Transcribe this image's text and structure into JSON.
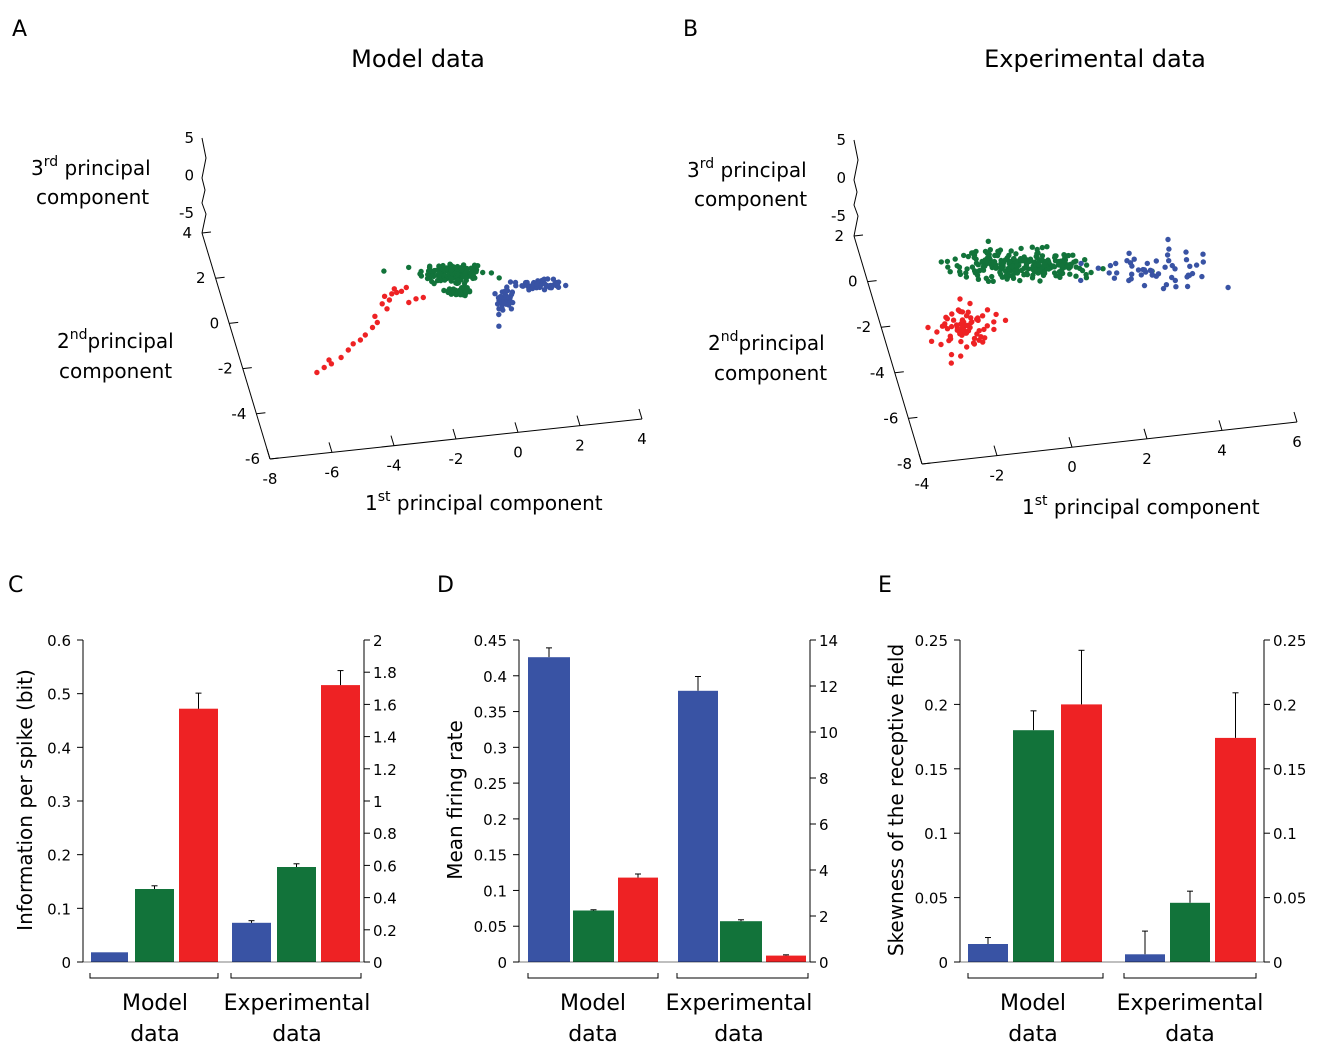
{
  "panel_labels": [
    "A",
    "B",
    "C",
    "D",
    "E"
  ],
  "colors": {
    "blue": "#3953a4",
    "green": "#12733a",
    "red": "#ee2224"
  },
  "chart_data": [
    {
      "id": "A",
      "type": "scatter",
      "title": "Model data",
      "xlabel": {
        "main": "1",
        "sup": "st",
        "rest": " principal component"
      },
      "ylabel": {
        "line1_main": "2",
        "line1_sup": "nd",
        "line1_rest": "principal",
        "line2": "component"
      },
      "zlabel": {
        "line1_main": "3",
        "line1_sup": "rd",
        "line1_rest": " principal",
        "line2": "component"
      },
      "x_ticks": [
        "-8",
        "-6",
        "-4",
        "-2",
        "0",
        "2",
        "4"
      ],
      "y_ticks": [
        "-6",
        "-4",
        "-2",
        "0",
        "2",
        "4"
      ],
      "z_ticks": [
        "-5",
        "0",
        "5"
      ],
      "series": [
        {
          "color": "red",
          "points": [
            [
              -7.3,
              -4.6
            ],
            [
              -7.0,
              -4.2
            ],
            [
              -6.7,
              -3.9
            ],
            [
              -6.8,
              -3.6
            ],
            [
              -6.3,
              -3.4
            ],
            [
              -6.0,
              -2.8
            ],
            [
              -5.8,
              -2.3
            ],
            [
              -5.5,
              -2.0
            ],
            [
              -5.3,
              -1.6
            ],
            [
              -5.0,
              -1.0
            ],
            [
              -4.8,
              -0.6
            ],
            [
              -4.9,
              -0.1
            ],
            [
              -4.4,
              0.5
            ],
            [
              -4.6,
              0.9
            ],
            [
              -4.3,
              1.2
            ],
            [
              -4.5,
              1.5
            ],
            [
              -4.2,
              1.7
            ],
            [
              -4.0,
              1.8
            ],
            [
              -3.8,
              1.9
            ],
            [
              -4.1,
              2.1
            ],
            [
              -3.6,
              2.2
            ],
            [
              -3.5,
              1.0
            ],
            [
              -3.2,
              1.3
            ],
            [
              -2.9,
              1.4
            ]
          ]
        },
        {
          "color": "green",
          "cluster": {
            "cx": -1.7,
            "cy": 3.3,
            "sx": 1.4,
            "sy": 0.9,
            "n": 130
          }
        },
        {
          "color": "green",
          "cluster": {
            "cx": -1.4,
            "cy": 1.9,
            "sx": 0.6,
            "sy": 0.4,
            "n": 40
          }
        },
        {
          "color": "blue",
          "cluster": {
            "cx": 0.5,
            "cy": 1.2,
            "sx": 0.35,
            "sy": 1.0,
            "n": 50
          }
        },
        {
          "color": "blue",
          "cluster": {
            "cx": 1.8,
            "cy": 2.4,
            "sx": 1.0,
            "sy": 0.4,
            "n": 55
          }
        }
      ]
    },
    {
      "id": "B",
      "type": "scatter",
      "title": "Experimental data",
      "xlabel": {
        "main": "1",
        "sup": "st",
        "rest": " principal component"
      },
      "ylabel": {
        "line1_main": "2",
        "line1_sup": "nd",
        "line1_rest": "principal",
        "line2": "component"
      },
      "zlabel": {
        "line1_main": "3",
        "line1_sup": "rd",
        "line1_rest": " principal",
        "line2": "component"
      },
      "x_ticks": [
        "-4",
        "-2",
        "0",
        "2",
        "4",
        "6"
      ],
      "y_ticks": [
        "-8",
        "-6",
        "-4",
        "-2",
        "0",
        "2"
      ],
      "z_ticks": [
        "-5",
        "0",
        "5"
      ],
      "series": [
        {
          "color": "red",
          "cluster": {
            "cx": -2.6,
            "cy": -0.3,
            "sx": 0.9,
            "sy": 1.5,
            "n": 75
          }
        },
        {
          "color": "green",
          "cluster": {
            "cx": -0.9,
            "cy": 2.9,
            "sx": 2.0,
            "sy": 0.8,
            "n": 260
          }
        },
        {
          "color": "blue",
          "cluster": {
            "cx": 3.2,
            "cy": 2.6,
            "sx": 1.8,
            "sy": 1.0,
            "n": 55
          }
        }
      ]
    },
    {
      "id": "C",
      "type": "bar",
      "ylabel": "Information per spike (bit)",
      "ylim": [
        0,
        0.6
      ],
      "yticks": [
        "0",
        "0.1",
        "0.2",
        "0.3",
        "0.4",
        "0.5",
        "0.6"
      ],
      "y2lim": [
        0,
        2
      ],
      "y2ticks": [
        "0",
        "0.2",
        "0.4",
        "0.6",
        "0.8",
        "1",
        "1.2",
        "1.4",
        "1.6",
        "1.8",
        "2"
      ],
      "groups": [
        {
          "line1": "Model",
          "line2": "data"
        },
        {
          "line1": "Experimental",
          "line2": "data"
        }
      ],
      "series": [
        {
          "color": "blue",
          "values": [
            0.018,
            0.073
          ],
          "errors": [
            0.0,
            0.004
          ]
        },
        {
          "color": "green",
          "values": [
            0.136,
            0.177
          ],
          "errors": [
            0.006,
            0.006
          ]
        },
        {
          "color": "red",
          "values": [
            0.472,
            0.516
          ],
          "errors": [
            0.029,
            0.027
          ]
        }
      ]
    },
    {
      "id": "D",
      "type": "bar",
      "ylabel": "Mean firing rate",
      "ylim": [
        0,
        0.45
      ],
      "yticks": [
        "0",
        "0.05",
        "0.1",
        "0.15",
        "0.2",
        "0.25",
        "0.3",
        "0.35",
        "0.4",
        "0.45"
      ],
      "y2lim": [
        0,
        14
      ],
      "y2ticks": [
        "0",
        "2",
        "4",
        "6",
        "8",
        "10",
        "12",
        "14"
      ],
      "groups": [
        {
          "line1": "Model",
          "line2": "data"
        },
        {
          "line1": "Experimental",
          "line2": "data"
        }
      ],
      "series": [
        {
          "color": "blue",
          "values": [
            0.426,
            0.379
          ],
          "errors": [
            0.013,
            0.02
          ]
        },
        {
          "color": "green",
          "values": [
            0.072,
            0.057
          ],
          "errors": [
            0.001,
            0.002
          ]
        },
        {
          "color": "red",
          "values": [
            0.118,
            0.009
          ],
          "errors": [
            0.005,
            0.001
          ]
        }
      ]
    },
    {
      "id": "E",
      "type": "bar",
      "ylabel": "Skewness of the receptive field",
      "ylim": [
        0,
        0.25
      ],
      "yticks": [
        "0",
        "0.05",
        "0.1",
        "0.15",
        "0.2",
        "0.25"
      ],
      "y2lim": [
        0,
        0.25
      ],
      "y2ticks": [
        "0",
        "0.05",
        "0.1",
        "0.15",
        "0.2",
        "0.25"
      ],
      "groups": [
        {
          "line1": "Model",
          "line2": "data"
        },
        {
          "line1": "Experimental",
          "line2": "data"
        }
      ],
      "series": [
        {
          "color": "blue",
          "values": [
            0.014,
            0.006
          ],
          "errors": [
            0.005,
            0.018
          ]
        },
        {
          "color": "green",
          "values": [
            0.18,
            0.046
          ],
          "errors": [
            0.015,
            0.009
          ]
        },
        {
          "color": "red",
          "values": [
            0.2,
            0.174
          ],
          "errors": [
            0.042,
            0.035
          ]
        }
      ]
    }
  ]
}
